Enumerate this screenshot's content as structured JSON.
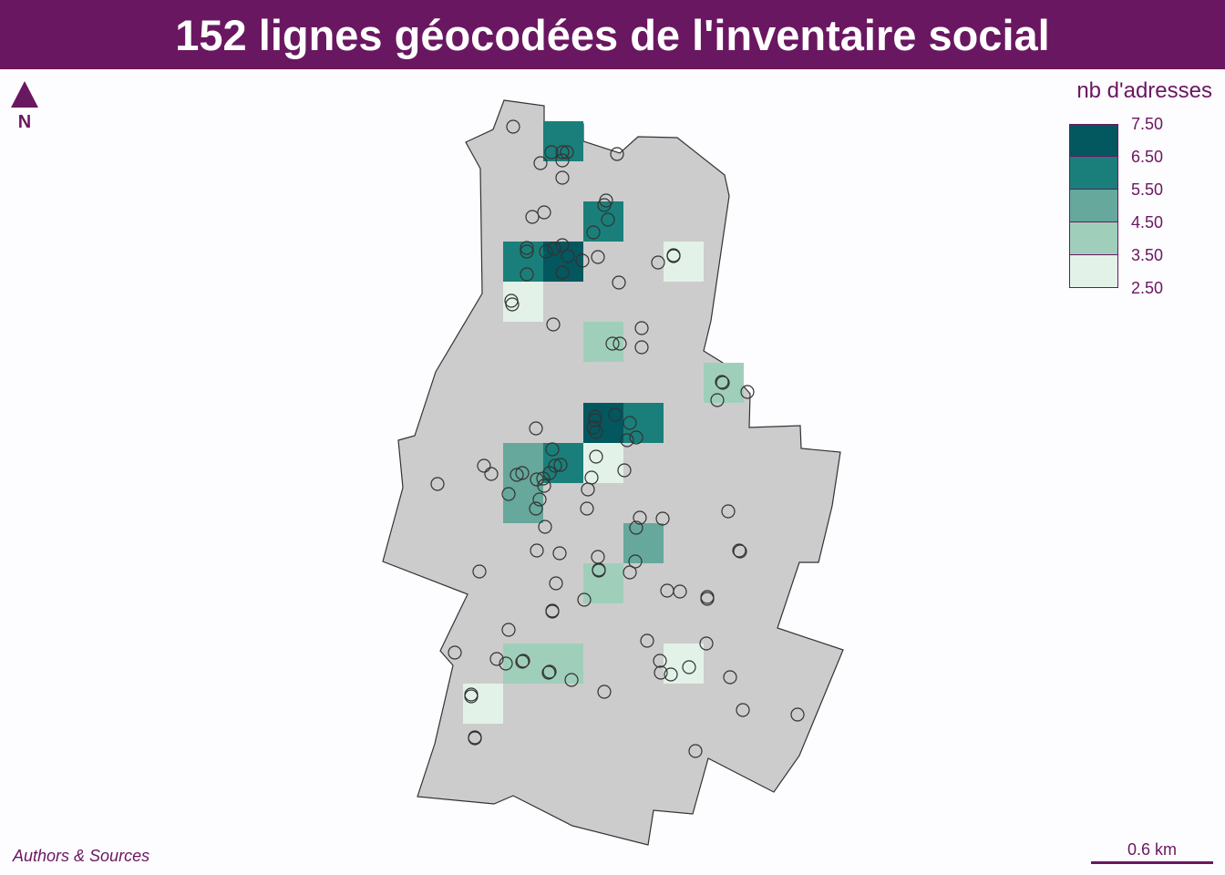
{
  "title": "152 lignes géocodées de l'inventaire social",
  "north_arrow": {
    "icon": "north-arrow-icon",
    "label": "N"
  },
  "legend": {
    "title": "nb d'adresses",
    "breaks": [
      "7.50",
      "6.50",
      "5.50",
      "4.50",
      "3.50",
      "2.50"
    ],
    "colors": [
      "#03575f",
      "#1a7f7a",
      "#66a89b",
      "#9fcfbb",
      "#e2f2e8"
    ]
  },
  "credits": "Authors & Sources",
  "scale_bar": {
    "label": "0.6 km"
  },
  "colors": {
    "brand": "#6a1761",
    "commune_fill": "#cccccc",
    "commune_stroke": "#333333",
    "point_stroke": "#333333"
  }
}
